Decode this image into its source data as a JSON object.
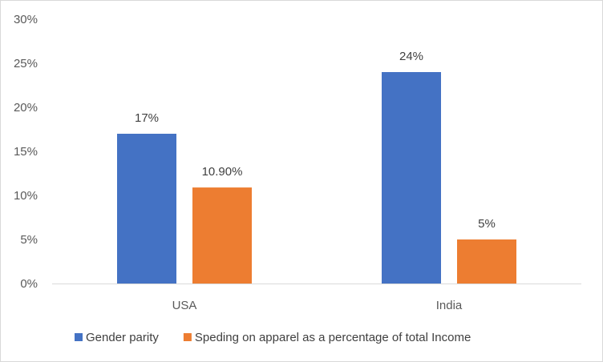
{
  "chart_data": {
    "type": "bar",
    "categories": [
      "USA",
      "India"
    ],
    "series": [
      {
        "name": "Gender parity",
        "values": [
          17,
          24
        ],
        "labels": [
          "17%",
          "24%"
        ],
        "color": "#4472c4"
      },
      {
        "name": "Speding on apparel as a percentage of total Income",
        "values": [
          10.9,
          5
        ],
        "labels": [
          "10.90%",
          "5%"
        ],
        "color": "#ed7d31"
      }
    ],
    "y_ticks": [
      "0%",
      "5%",
      "10%",
      "15%",
      "20%",
      "25%",
      "30%"
    ],
    "ylim": [
      0,
      30
    ],
    "grid": false,
    "legend": "bottom",
    "title": "",
    "xlabel": "",
    "ylabel": ""
  }
}
